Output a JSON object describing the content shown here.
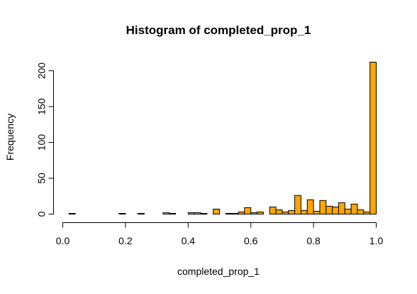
{
  "chart_data": {
    "type": "bar",
    "title": "Histogram of completed_prop_1",
    "xlabel": "completed_prop_1",
    "ylabel": "Frequency",
    "xlim": [
      0.0,
      1.0
    ],
    "ylim": [
      0,
      212
    ],
    "x_ticks": [
      "0.0",
      "0.2",
      "0.4",
      "0.6",
      "0.8",
      "1.0"
    ],
    "x_tick_values": [
      0.0,
      0.2,
      0.4,
      0.6,
      0.8,
      1.0
    ],
    "y_ticks": [
      "0",
      "50",
      "100",
      "150",
      "200"
    ],
    "y_tick_values": [
      0,
      50,
      100,
      150,
      200
    ],
    "bin_width": 0.02,
    "bins_start": [
      0.0,
      0.02,
      0.04,
      0.06,
      0.08,
      0.1,
      0.12,
      0.14,
      0.16,
      0.18,
      0.2,
      0.22,
      0.24,
      0.26,
      0.28,
      0.3,
      0.32,
      0.34,
      0.36,
      0.38,
      0.4,
      0.42,
      0.44,
      0.46,
      0.48,
      0.5,
      0.52,
      0.54,
      0.56,
      0.58,
      0.6,
      0.62,
      0.64,
      0.66,
      0.68,
      0.7,
      0.72,
      0.74,
      0.76,
      0.78,
      0.8,
      0.82,
      0.84,
      0.86,
      0.88,
      0.9,
      0.92,
      0.94,
      0.96,
      0.98
    ],
    "values": [
      0,
      1,
      0,
      0,
      0,
      0,
      0,
      0,
      0,
      1,
      0,
      0,
      1,
      0,
      0,
      0,
      2,
      1,
      0,
      0,
      2,
      2,
      1,
      0,
      7,
      0,
      1,
      1,
      3,
      9,
      2,
      3,
      0,
      10,
      6,
      3,
      5,
      26,
      5,
      20,
      4,
      19,
      11,
      10,
      16,
      7,
      14,
      6,
      3,
      212
    ],
    "bar_color": "#FFA500",
    "bar_outline_color": "#000000",
    "grid": false
  }
}
